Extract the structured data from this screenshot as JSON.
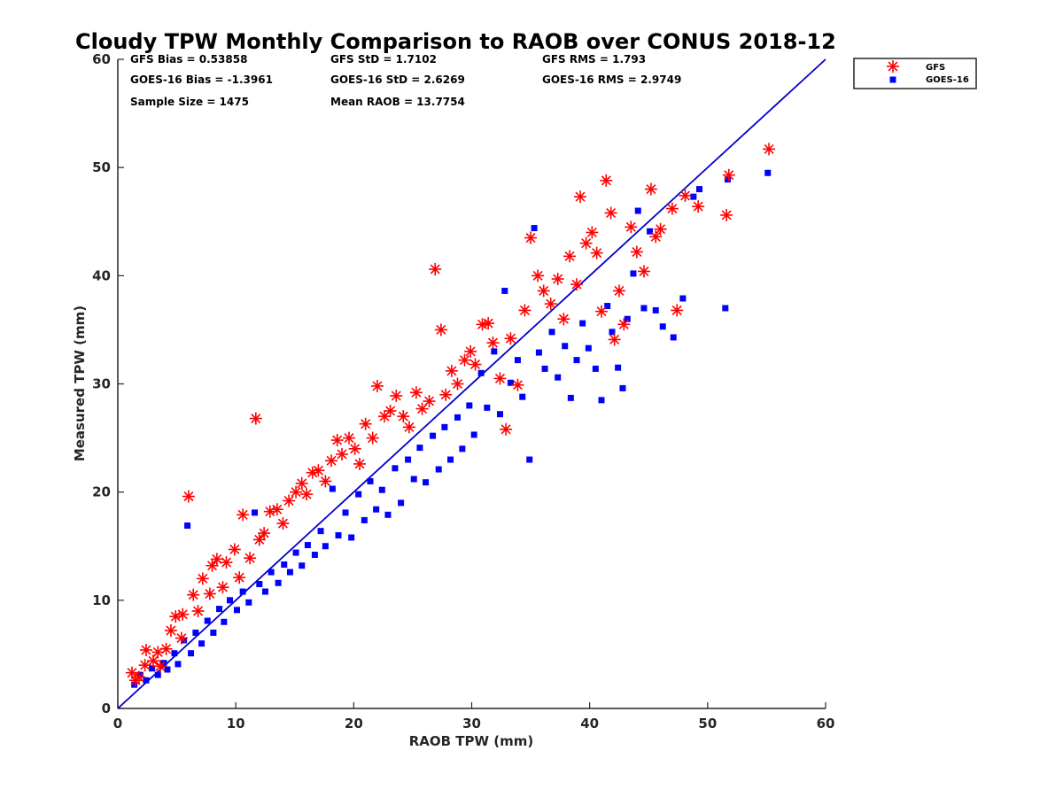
{
  "chart_data": {
    "type": "scatter",
    "title": "Cloudy TPW Monthly Comparison to RAOB over CONUS 2018-12",
    "xlabel": "RAOB TPW (mm)",
    "ylabel": "Measured TPW (mm)",
    "xlim": [
      0,
      60
    ],
    "ylim": [
      0,
      60
    ],
    "x_ticks": [
      "0",
      "10",
      "20",
      "30",
      "40",
      "50",
      "60"
    ],
    "y_ticks": [
      "0",
      "10",
      "20",
      "30",
      "40",
      "50",
      "60"
    ],
    "grid": false,
    "legend_position": "top-right, outside axes",
    "reference_line": {
      "name": "1:1 line",
      "x": [
        0,
        60
      ],
      "y": [
        0,
        60
      ],
      "color": "#0000cc"
    },
    "stats": [
      [
        "GFS Bias = 0.53858",
        "GFS StD = 1.7102",
        "GFS RMS = 1.793"
      ],
      [
        "GOES-16 Bias = -1.3961",
        "GOES-16 StD = 2.6269",
        "GOES-16 RMS = 2.9749"
      ],
      [
        "Sample Size = 1475",
        "Mean RAOB = 13.7754",
        ""
      ]
    ],
    "series": [
      {
        "name": "GFS",
        "marker": "asterisk",
        "color": "#ff0000",
        "points": [
          [
            1.2,
            3.3
          ],
          [
            1.5,
            2.6
          ],
          [
            1.8,
            2.9
          ],
          [
            2.3,
            4.0
          ],
          [
            2.4,
            5.4
          ],
          [
            3.0,
            4.4
          ],
          [
            3.4,
            5.2
          ],
          [
            3.6,
            3.9
          ],
          [
            4.1,
            5.5
          ],
          [
            4.5,
            7.2
          ],
          [
            4.9,
            8.5
          ],
          [
            5.4,
            6.5
          ],
          [
            5.5,
            8.7
          ],
          [
            6.0,
            19.6
          ],
          [
            6.4,
            10.5
          ],
          [
            6.8,
            9.0
          ],
          [
            7.2,
            12.0
          ],
          [
            7.8,
            10.6
          ],
          [
            8.0,
            13.2
          ],
          [
            8.4,
            13.8
          ],
          [
            8.9,
            11.2
          ],
          [
            9.2,
            13.5
          ],
          [
            9.9,
            14.7
          ],
          [
            10.3,
            12.1
          ],
          [
            10.6,
            17.9
          ],
          [
            11.2,
            13.9
          ],
          [
            11.7,
            26.8
          ],
          [
            12.0,
            15.6
          ],
          [
            12.4,
            16.2
          ],
          [
            12.9,
            18.2
          ],
          [
            13.5,
            18.4
          ],
          [
            14.0,
            17.1
          ],
          [
            14.5,
            19.2
          ],
          [
            15.1,
            20.0
          ],
          [
            15.6,
            20.8
          ],
          [
            16.0,
            19.8
          ],
          [
            16.5,
            21.8
          ],
          [
            17.0,
            22.0
          ],
          [
            17.6,
            21.0
          ],
          [
            18.1,
            22.9
          ],
          [
            18.6,
            24.8
          ],
          [
            19.0,
            23.5
          ],
          [
            19.6,
            25.0
          ],
          [
            20.1,
            24.0
          ],
          [
            20.5,
            22.6
          ],
          [
            21.0,
            26.3
          ],
          [
            21.6,
            25.0
          ],
          [
            22.0,
            29.8
          ],
          [
            22.6,
            27.0
          ],
          [
            23.1,
            27.5
          ],
          [
            23.6,
            28.9
          ],
          [
            24.2,
            27.0
          ],
          [
            24.7,
            26.0
          ],
          [
            25.3,
            29.2
          ],
          [
            25.8,
            27.7
          ],
          [
            26.4,
            28.4
          ],
          [
            26.9,
            40.6
          ],
          [
            27.4,
            35.0
          ],
          [
            27.8,
            29.0
          ],
          [
            28.3,
            31.2
          ],
          [
            28.8,
            30.0
          ],
          [
            29.4,
            32.2
          ],
          [
            29.9,
            33.0
          ],
          [
            30.3,
            31.8
          ],
          [
            30.9,
            35.5
          ],
          [
            31.4,
            35.6
          ],
          [
            31.8,
            33.8
          ],
          [
            32.4,
            30.5
          ],
          [
            32.9,
            25.8
          ],
          [
            33.3,
            34.2
          ],
          [
            33.9,
            29.9
          ],
          [
            34.5,
            36.8
          ],
          [
            35.0,
            43.5
          ],
          [
            35.6,
            40.0
          ],
          [
            36.1,
            38.6
          ],
          [
            36.7,
            37.4
          ],
          [
            37.3,
            39.7
          ],
          [
            37.8,
            36.0
          ],
          [
            38.3,
            41.8
          ],
          [
            38.9,
            39.2
          ],
          [
            39.2,
            47.3
          ],
          [
            39.7,
            43.0
          ],
          [
            40.2,
            44.0
          ],
          [
            40.6,
            42.1
          ],
          [
            41.0,
            36.7
          ],
          [
            41.4,
            48.8
          ],
          [
            41.8,
            45.8
          ],
          [
            42.1,
            34.1
          ],
          [
            42.5,
            38.6
          ],
          [
            42.9,
            35.5
          ],
          [
            43.5,
            44.5
          ],
          [
            44.0,
            42.2
          ],
          [
            44.6,
            40.4
          ],
          [
            45.2,
            48.0
          ],
          [
            45.6,
            43.6
          ],
          [
            46.0,
            44.3
          ],
          [
            47.0,
            46.2
          ],
          [
            47.4,
            36.8
          ],
          [
            48.1,
            47.4
          ],
          [
            49.2,
            46.4
          ],
          [
            51.6,
            45.6
          ],
          [
            51.8,
            49.3
          ],
          [
            55.2,
            51.7
          ]
        ]
      },
      {
        "name": "GOES-16",
        "marker": "square",
        "color": "#0000ff",
        "points": [
          [
            1.4,
            2.2
          ],
          [
            1.9,
            3.1
          ],
          [
            2.4,
            2.6
          ],
          [
            2.9,
            3.7
          ],
          [
            3.4,
            3.1
          ],
          [
            3.9,
            4.2
          ],
          [
            4.2,
            3.6
          ],
          [
            4.8,
            5.1
          ],
          [
            5.1,
            4.1
          ],
          [
            5.6,
            6.3
          ],
          [
            5.9,
            16.9
          ],
          [
            6.2,
            5.1
          ],
          [
            6.6,
            7.0
          ],
          [
            7.1,
            6.0
          ],
          [
            7.6,
            8.1
          ],
          [
            8.1,
            7.0
          ],
          [
            8.6,
            9.2
          ],
          [
            9.0,
            8.0
          ],
          [
            9.5,
            10.0
          ],
          [
            10.1,
            9.1
          ],
          [
            10.6,
            10.8
          ],
          [
            11.1,
            9.8
          ],
          [
            11.6,
            18.1
          ],
          [
            12.0,
            11.5
          ],
          [
            12.5,
            10.8
          ],
          [
            13.0,
            12.6
          ],
          [
            13.6,
            11.6
          ],
          [
            14.1,
            13.3
          ],
          [
            14.6,
            12.6
          ],
          [
            15.1,
            14.4
          ],
          [
            15.6,
            13.2
          ],
          [
            16.1,
            15.1
          ],
          [
            16.7,
            14.2
          ],
          [
            17.2,
            16.4
          ],
          [
            17.6,
            15.0
          ],
          [
            18.2,
            20.3
          ],
          [
            18.7,
            16.0
          ],
          [
            19.3,
            18.1
          ],
          [
            19.8,
            15.8
          ],
          [
            20.4,
            19.8
          ],
          [
            20.9,
            17.4
          ],
          [
            21.4,
            21.0
          ],
          [
            21.9,
            18.4
          ],
          [
            22.4,
            20.2
          ],
          [
            22.9,
            17.9
          ],
          [
            23.5,
            22.2
          ],
          [
            24.0,
            19.0
          ],
          [
            24.6,
            23.0
          ],
          [
            25.1,
            21.2
          ],
          [
            25.6,
            24.1
          ],
          [
            26.1,
            20.9
          ],
          [
            26.7,
            25.2
          ],
          [
            27.2,
            22.1
          ],
          [
            27.7,
            26.0
          ],
          [
            28.2,
            23.0
          ],
          [
            28.8,
            26.9
          ],
          [
            29.2,
            24.0
          ],
          [
            29.8,
            28.0
          ],
          [
            30.2,
            25.3
          ],
          [
            30.8,
            31.0
          ],
          [
            31.3,
            27.8
          ],
          [
            31.9,
            33.0
          ],
          [
            32.4,
            27.2
          ],
          [
            32.8,
            38.6
          ],
          [
            33.3,
            30.1
          ],
          [
            33.9,
            32.2
          ],
          [
            34.3,
            28.8
          ],
          [
            34.9,
            23.0
          ],
          [
            35.3,
            44.4
          ],
          [
            35.7,
            32.9
          ],
          [
            36.2,
            31.4
          ],
          [
            36.8,
            34.8
          ],
          [
            37.3,
            30.6
          ],
          [
            37.9,
            33.5
          ],
          [
            38.4,
            28.7
          ],
          [
            38.9,
            32.2
          ],
          [
            39.4,
            35.6
          ],
          [
            39.9,
            33.3
          ],
          [
            40.5,
            31.4
          ],
          [
            41.0,
            28.5
          ],
          [
            41.5,
            37.2
          ],
          [
            41.9,
            34.8
          ],
          [
            42.4,
            31.5
          ],
          [
            42.8,
            29.6
          ],
          [
            43.2,
            36.0
          ],
          [
            43.7,
            40.2
          ],
          [
            44.1,
            46.0
          ],
          [
            44.6,
            37.0
          ],
          [
            45.1,
            44.1
          ],
          [
            45.6,
            36.8
          ],
          [
            46.2,
            35.3
          ],
          [
            47.1,
            34.3
          ],
          [
            47.9,
            37.9
          ],
          [
            48.8,
            47.3
          ],
          [
            49.3,
            48.0
          ],
          [
            51.5,
            37.0
          ],
          [
            51.7,
            48.9
          ],
          [
            55.1,
            49.5
          ]
        ]
      }
    ]
  }
}
